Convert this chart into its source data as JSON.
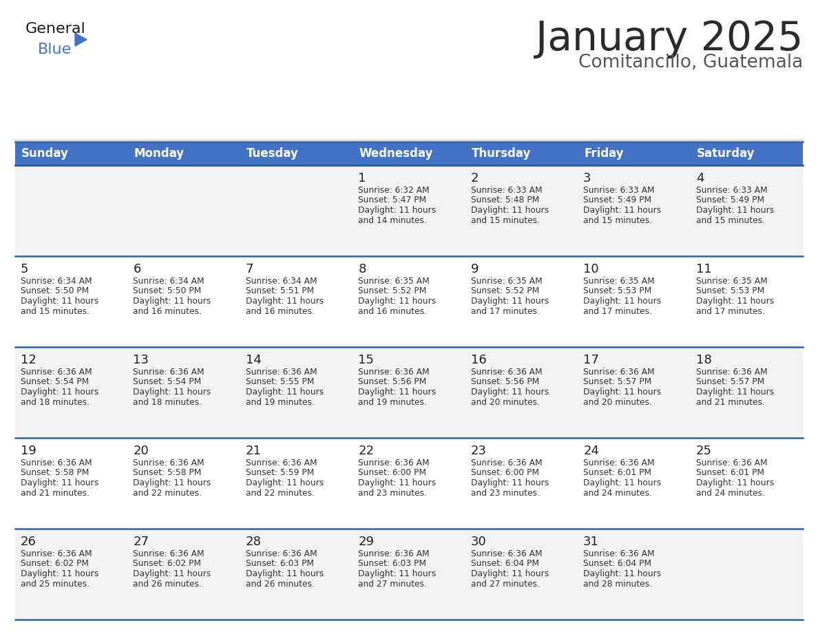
{
  "title": "January 2025",
  "subtitle": "Comitancillo, Guatemala",
  "title_color": "#2b2b2b",
  "subtitle_color": "#555555",
  "header_bg_color": "#4472c4",
  "header_text_color": "#ffffff",
  "row_bg_colors": [
    "#f2f2f2",
    "#ffffff"
  ],
  "cell_text_color": "#333333",
  "day_number_color": "#222222",
  "grid_line_color": "#2e5fa3",
  "days_of_week": [
    "Sunday",
    "Monday",
    "Tuesday",
    "Wednesday",
    "Thursday",
    "Friday",
    "Saturday"
  ],
  "calendar_data": [
    [
      {
        "day": "",
        "sunrise": "",
        "sunset": "",
        "daylight_hours": "",
        "daylight_mins": ""
      },
      {
        "day": "",
        "sunrise": "",
        "sunset": "",
        "daylight_hours": "",
        "daylight_mins": ""
      },
      {
        "day": "",
        "sunrise": "",
        "sunset": "",
        "daylight_hours": "",
        "daylight_mins": ""
      },
      {
        "day": "1",
        "sunrise": "6:32 AM",
        "sunset": "5:47 PM",
        "daylight_hours": "11 hours",
        "daylight_mins": "and 14 minutes."
      },
      {
        "day": "2",
        "sunrise": "6:33 AM",
        "sunset": "5:48 PM",
        "daylight_hours": "11 hours",
        "daylight_mins": "and 15 minutes."
      },
      {
        "day": "3",
        "sunrise": "6:33 AM",
        "sunset": "5:49 PM",
        "daylight_hours": "11 hours",
        "daylight_mins": "and 15 minutes."
      },
      {
        "day": "4",
        "sunrise": "6:33 AM",
        "sunset": "5:49 PM",
        "daylight_hours": "11 hours",
        "daylight_mins": "and 15 minutes."
      }
    ],
    [
      {
        "day": "5",
        "sunrise": "6:34 AM",
        "sunset": "5:50 PM",
        "daylight_hours": "11 hours",
        "daylight_mins": "and 15 minutes."
      },
      {
        "day": "6",
        "sunrise": "6:34 AM",
        "sunset": "5:50 PM",
        "daylight_hours": "11 hours",
        "daylight_mins": "and 16 minutes."
      },
      {
        "day": "7",
        "sunrise": "6:34 AM",
        "sunset": "5:51 PM",
        "daylight_hours": "11 hours",
        "daylight_mins": "and 16 minutes."
      },
      {
        "day": "8",
        "sunrise": "6:35 AM",
        "sunset": "5:52 PM",
        "daylight_hours": "11 hours",
        "daylight_mins": "and 16 minutes."
      },
      {
        "day": "9",
        "sunrise": "6:35 AM",
        "sunset": "5:52 PM",
        "daylight_hours": "11 hours",
        "daylight_mins": "and 17 minutes."
      },
      {
        "day": "10",
        "sunrise": "6:35 AM",
        "sunset": "5:53 PM",
        "daylight_hours": "11 hours",
        "daylight_mins": "and 17 minutes."
      },
      {
        "day": "11",
        "sunrise": "6:35 AM",
        "sunset": "5:53 PM",
        "daylight_hours": "11 hours",
        "daylight_mins": "and 17 minutes."
      }
    ],
    [
      {
        "day": "12",
        "sunrise": "6:36 AM",
        "sunset": "5:54 PM",
        "daylight_hours": "11 hours",
        "daylight_mins": "and 18 minutes."
      },
      {
        "day": "13",
        "sunrise": "6:36 AM",
        "sunset": "5:54 PM",
        "daylight_hours": "11 hours",
        "daylight_mins": "and 18 minutes."
      },
      {
        "day": "14",
        "sunrise": "6:36 AM",
        "sunset": "5:55 PM",
        "daylight_hours": "11 hours",
        "daylight_mins": "and 19 minutes."
      },
      {
        "day": "15",
        "sunrise": "6:36 AM",
        "sunset": "5:56 PM",
        "daylight_hours": "11 hours",
        "daylight_mins": "and 19 minutes."
      },
      {
        "day": "16",
        "sunrise": "6:36 AM",
        "sunset": "5:56 PM",
        "daylight_hours": "11 hours",
        "daylight_mins": "and 20 minutes."
      },
      {
        "day": "17",
        "sunrise": "6:36 AM",
        "sunset": "5:57 PM",
        "daylight_hours": "11 hours",
        "daylight_mins": "and 20 minutes."
      },
      {
        "day": "18",
        "sunrise": "6:36 AM",
        "sunset": "5:57 PM",
        "daylight_hours": "11 hours",
        "daylight_mins": "and 21 minutes."
      }
    ],
    [
      {
        "day": "19",
        "sunrise": "6:36 AM",
        "sunset": "5:58 PM",
        "daylight_hours": "11 hours",
        "daylight_mins": "and 21 minutes."
      },
      {
        "day": "20",
        "sunrise": "6:36 AM",
        "sunset": "5:58 PM",
        "daylight_hours": "11 hours",
        "daylight_mins": "and 22 minutes."
      },
      {
        "day": "21",
        "sunrise": "6:36 AM",
        "sunset": "5:59 PM",
        "daylight_hours": "11 hours",
        "daylight_mins": "and 22 minutes."
      },
      {
        "day": "22",
        "sunrise": "6:36 AM",
        "sunset": "6:00 PM",
        "daylight_hours": "11 hours",
        "daylight_mins": "and 23 minutes."
      },
      {
        "day": "23",
        "sunrise": "6:36 AM",
        "sunset": "6:00 PM",
        "daylight_hours": "11 hours",
        "daylight_mins": "and 23 minutes."
      },
      {
        "day": "24",
        "sunrise": "6:36 AM",
        "sunset": "6:01 PM",
        "daylight_hours": "11 hours",
        "daylight_mins": "and 24 minutes."
      },
      {
        "day": "25",
        "sunrise": "6:36 AM",
        "sunset": "6:01 PM",
        "daylight_hours": "11 hours",
        "daylight_mins": "and 24 minutes."
      }
    ],
    [
      {
        "day": "26",
        "sunrise": "6:36 AM",
        "sunset": "6:02 PM",
        "daylight_hours": "11 hours",
        "daylight_mins": "and 25 minutes."
      },
      {
        "day": "27",
        "sunrise": "6:36 AM",
        "sunset": "6:02 PM",
        "daylight_hours": "11 hours",
        "daylight_mins": "and 26 minutes."
      },
      {
        "day": "28",
        "sunrise": "6:36 AM",
        "sunset": "6:03 PM",
        "daylight_hours": "11 hours",
        "daylight_mins": "and 26 minutes."
      },
      {
        "day": "29",
        "sunrise": "6:36 AM",
        "sunset": "6:03 PM",
        "daylight_hours": "11 hours",
        "daylight_mins": "and 27 minutes."
      },
      {
        "day": "30",
        "sunrise": "6:36 AM",
        "sunset": "6:04 PM",
        "daylight_hours": "11 hours",
        "daylight_mins": "and 27 minutes."
      },
      {
        "day": "31",
        "sunrise": "6:36 AM",
        "sunset": "6:04 PM",
        "daylight_hours": "11 hours",
        "daylight_mins": "and 28 minutes."
      },
      {
        "day": "",
        "sunrise": "",
        "sunset": "",
        "daylight_hours": "",
        "daylight_mins": ""
      }
    ]
  ],
  "logo_text_general": "General",
  "logo_text_blue": "Blue",
  "logo_color_general": "#1a1a1a",
  "logo_color_blue": "#4472c4",
  "logo_triangle_color": "#4472c4"
}
